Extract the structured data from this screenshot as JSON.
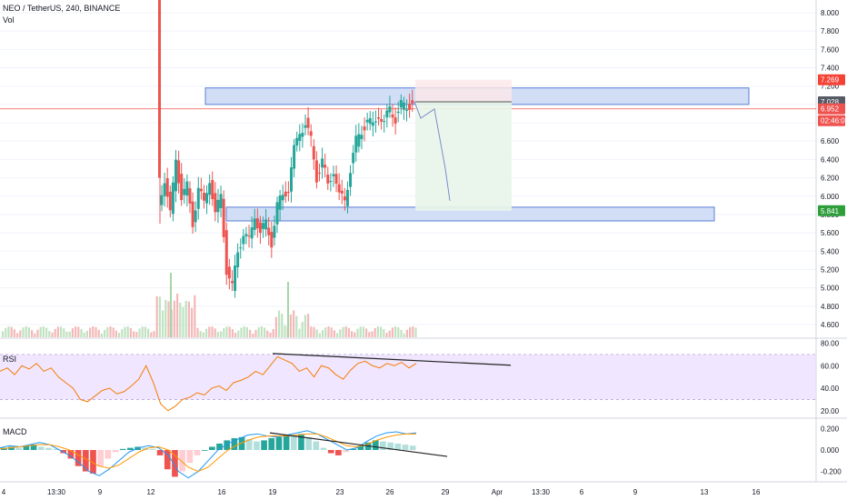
{
  "header": {
    "symbol_line": "NEO / TetherUS, 240, BINANCE",
    "volume_label": "Vol"
  },
  "panes": {
    "rsi_label": "RSI",
    "macd_label": "MACD"
  },
  "colors": {
    "bull": "#26a69a",
    "bear": "#ef5350",
    "zone_fill": "#c9d8f5",
    "zone_stroke": "#5b7fd6",
    "rsi_line": "#f57c00",
    "rsi_band": "#e9dcff",
    "macd_line": "#2196f3",
    "signal_line": "#ff9800",
    "target_fill": "#e8f5e9",
    "stop_fill": "#fde7e9",
    "current_price_bg": "#ef5350",
    "target_price_bg": "#2e9e3b"
  },
  "chart_data": {
    "type": "candlestick",
    "title": "NEO / TetherUS, 240, BINANCE",
    "price_axis": {
      "ticks": [
        "8.000",
        "7.800",
        "7.600",
        "7.400",
        "7.200",
        "7.000",
        "6.800",
        "6.600",
        "6.400",
        "6.200",
        "6.000",
        "5.800",
        "5.600",
        "5.400",
        "5.200",
        "5.000",
        "4.800",
        "4.600"
      ],
      "ylim": [
        4.5,
        8.1
      ]
    },
    "price_labels": {
      "stop": "7.269",
      "entry": "7.028",
      "current": "6.952",
      "countdown": "02:46:08",
      "target": "5.841"
    },
    "x_axis_ticks": [
      "4",
      "13:30",
      "9",
      "12",
      "16",
      "19",
      "23",
      "26",
      "29",
      "Apr",
      "13:30",
      "6",
      "9",
      "13",
      "16"
    ],
    "zones": [
      {
        "name": "resistance",
        "low": 7.0,
        "high": 7.18
      },
      {
        "name": "support",
        "low": 5.73,
        "high": 5.88
      }
    ],
    "close_path": [
      5.9,
      6.2,
      5.8,
      6.4,
      6.0,
      6.1,
      5.7,
      6.1,
      5.9,
      6.2,
      5.8,
      6.0,
      5.2,
      5.0,
      5.4,
      5.6,
      5.5,
      5.8,
      5.6,
      5.7,
      5.5,
      5.9,
      6.0,
      6.1,
      6.5,
      6.7,
      6.8,
      6.6,
      6.2,
      6.4,
      6.1,
      6.3,
      6.0,
      5.95,
      6.3,
      6.6,
      6.7,
      6.85,
      6.75,
      6.9,
      6.8,
      6.95,
      6.85,
      7.0,
      6.95,
      7.05
    ],
    "projection": [
      7.03,
      6.85,
      6.95,
      6.3,
      5.95
    ],
    "rsi": {
      "axis_ticks": [
        "80.00",
        "60.00",
        "40.00",
        "20.00"
      ],
      "ylim": [
        15,
        82
      ],
      "band": [
        30,
        70
      ],
      "values": [
        55,
        58,
        52,
        60,
        57,
        62,
        55,
        58,
        50,
        45,
        40,
        30,
        28,
        33,
        38,
        40,
        35,
        37,
        42,
        48,
        60,
        45,
        26,
        20,
        24,
        30,
        32,
        36,
        34,
        40,
        42,
        38,
        45,
        47,
        50,
        55,
        52,
        60,
        68,
        65,
        62,
        55,
        58,
        50,
        60,
        58,
        52,
        48,
        56,
        62,
        64,
        60,
        58,
        62,
        60,
        63,
        58,
        62
      ],
      "trendline": [
        70,
        62
      ]
    },
    "macd": {
      "axis_ticks": [
        "0.200",
        "0.000",
        "-0.200"
      ],
      "ylim": [
        -0.28,
        0.28
      ],
      "histogram": [
        0.02,
        0.03,
        0.02,
        0.04,
        0.05,
        0.03,
        0.02,
        0.01,
        -0.03,
        -0.08,
        -0.15,
        -0.2,
        -0.22,
        -0.15,
        -0.08,
        -0.02,
        0.01,
        0.02,
        0.03,
        0.02,
        0.01,
        -0.05,
        -0.18,
        -0.25,
        -0.2,
        -0.12,
        -0.05,
        0.0,
        0.03,
        0.06,
        0.09,
        0.11,
        0.12,
        0.1,
        0.08,
        0.09,
        0.11,
        0.12,
        0.14,
        0.13,
        0.15,
        0.12,
        0.08,
        0.02,
        -0.03,
        -0.05,
        -0.02,
        0.01,
        0.04,
        0.07,
        0.09,
        0.08,
        0.07,
        0.06,
        0.05,
        0.04
      ],
      "macd_line": [
        0.02,
        0.04,
        0.03,
        0.05,
        0.07,
        0.05,
        0.0,
        -0.05,
        -0.12,
        -0.2,
        -0.24,
        -0.18,
        -0.1,
        -0.02,
        0.02,
        0.04,
        0.02,
        -0.05,
        -0.2,
        -0.26,
        -0.2,
        -0.1,
        0.0,
        0.06,
        0.1,
        0.14,
        0.15,
        0.13,
        0.12,
        0.14,
        0.16,
        0.18,
        0.15,
        0.1,
        0.05,
        0.0,
        0.02,
        0.08,
        0.13,
        0.16,
        0.17,
        0.15,
        0.16
      ],
      "signal_line": [
        0.01,
        0.02,
        0.03,
        0.04,
        0.05,
        0.05,
        0.03,
        0.0,
        -0.05,
        -0.1,
        -0.15,
        -0.17,
        -0.14,
        -0.08,
        -0.02,
        0.02,
        0.03,
        0.0,
        -0.08,
        -0.16,
        -0.2,
        -0.16,
        -0.08,
        0.0,
        0.05,
        0.09,
        0.12,
        0.13,
        0.13,
        0.13,
        0.14,
        0.15,
        0.15,
        0.12,
        0.08,
        0.04,
        0.03,
        0.05,
        0.09,
        0.12,
        0.14,
        0.15,
        0.15
      ],
      "trendline": [
        0.16,
        -0.06
      ]
    }
  }
}
